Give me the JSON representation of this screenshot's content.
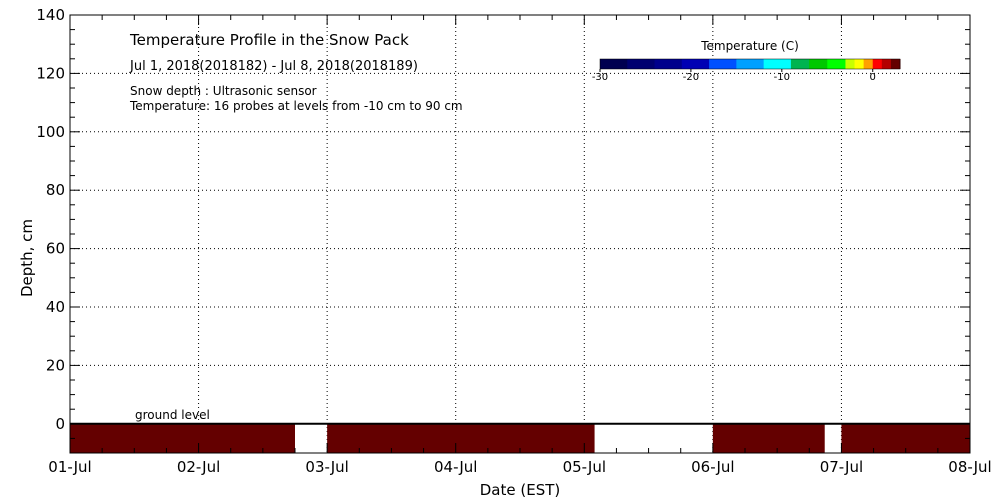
{
  "chart_data": {
    "type": "heatmap",
    "title": "Temperature Profile in the Snow Pack",
    "subtitle": "Jul  1, 2018(2018182) - Jul  8, 2018(2018189)",
    "notes": [
      "Snow depth : Ultrasonic sensor",
      "Temperature: 16 probes at levels from -10 cm to 90 cm"
    ],
    "xlabel": "Date (EST)",
    "ylabel": "Depth, cm",
    "x_ticks": [
      "01-Jul",
      "02-Jul",
      "03-Jul",
      "04-Jul",
      "05-Jul",
      "06-Jul",
      "07-Jul",
      "08-Jul"
    ],
    "y_ticks": [
      0,
      20,
      40,
      60,
      80,
      100,
      120,
      140
    ],
    "xlim_days": [
      0,
      7
    ],
    "ylim": [
      -10,
      140
    ],
    "grid": true,
    "ground_level_label": "ground level",
    "ground_level_depth": 0,
    "colorbar": {
      "title": "Temperature (C)",
      "range": [
        -30,
        3
      ],
      "tick_values": [
        -30,
        -20,
        -10,
        0
      ],
      "tick_labels": [
        "-30",
        "-20",
        "-10",
        "0"
      ],
      "placement": "top-right",
      "bands": [
        {
          "from": -30,
          "to": -27,
          "color": "#000050"
        },
        {
          "from": -27,
          "to": -24,
          "color": "#000070"
        },
        {
          "from": -24,
          "to": -21,
          "color": "#00008c"
        },
        {
          "from": -21,
          "to": -18,
          "color": "#0000b4"
        },
        {
          "from": -18,
          "to": -15,
          "color": "#0050ff"
        },
        {
          "from": -15,
          "to": -12,
          "color": "#00a0ff"
        },
        {
          "from": -12,
          "to": -9,
          "color": "#00ffff"
        },
        {
          "from": -9,
          "to": -7,
          "color": "#00b450"
        },
        {
          "from": -7,
          "to": -5,
          "color": "#00c800"
        },
        {
          "from": -5,
          "to": -3,
          "color": "#00ff00"
        },
        {
          "from": -3,
          "to": -2,
          "color": "#c8ff00"
        },
        {
          "from": -2,
          "to": -1,
          "color": "#ffff00"
        },
        {
          "from": -1,
          "to": 0,
          "color": "#ffa000"
        },
        {
          "from": 0,
          "to": 1,
          "color": "#ff0000"
        },
        {
          "from": 1,
          "to": 2,
          "color": "#b40000"
        },
        {
          "from": 2,
          "to": 3,
          "color": "#640000"
        }
      ]
    },
    "temperature_segments": [
      {
        "start_day": 0.0,
        "end_day": 1.75,
        "depth_from": -10,
        "depth_to": 0,
        "color": "#640000"
      },
      {
        "start_day": 2.0,
        "end_day": 4.08,
        "depth_from": -10,
        "depth_to": 0,
        "color": "#640000"
      },
      {
        "start_day": 5.0,
        "end_day": 5.87,
        "depth_from": -10,
        "depth_to": 0,
        "color": "#640000"
      },
      {
        "start_day": 6.0,
        "end_day": 7.0,
        "depth_from": -10,
        "depth_to": 0,
        "color": "#640000"
      }
    ]
  }
}
